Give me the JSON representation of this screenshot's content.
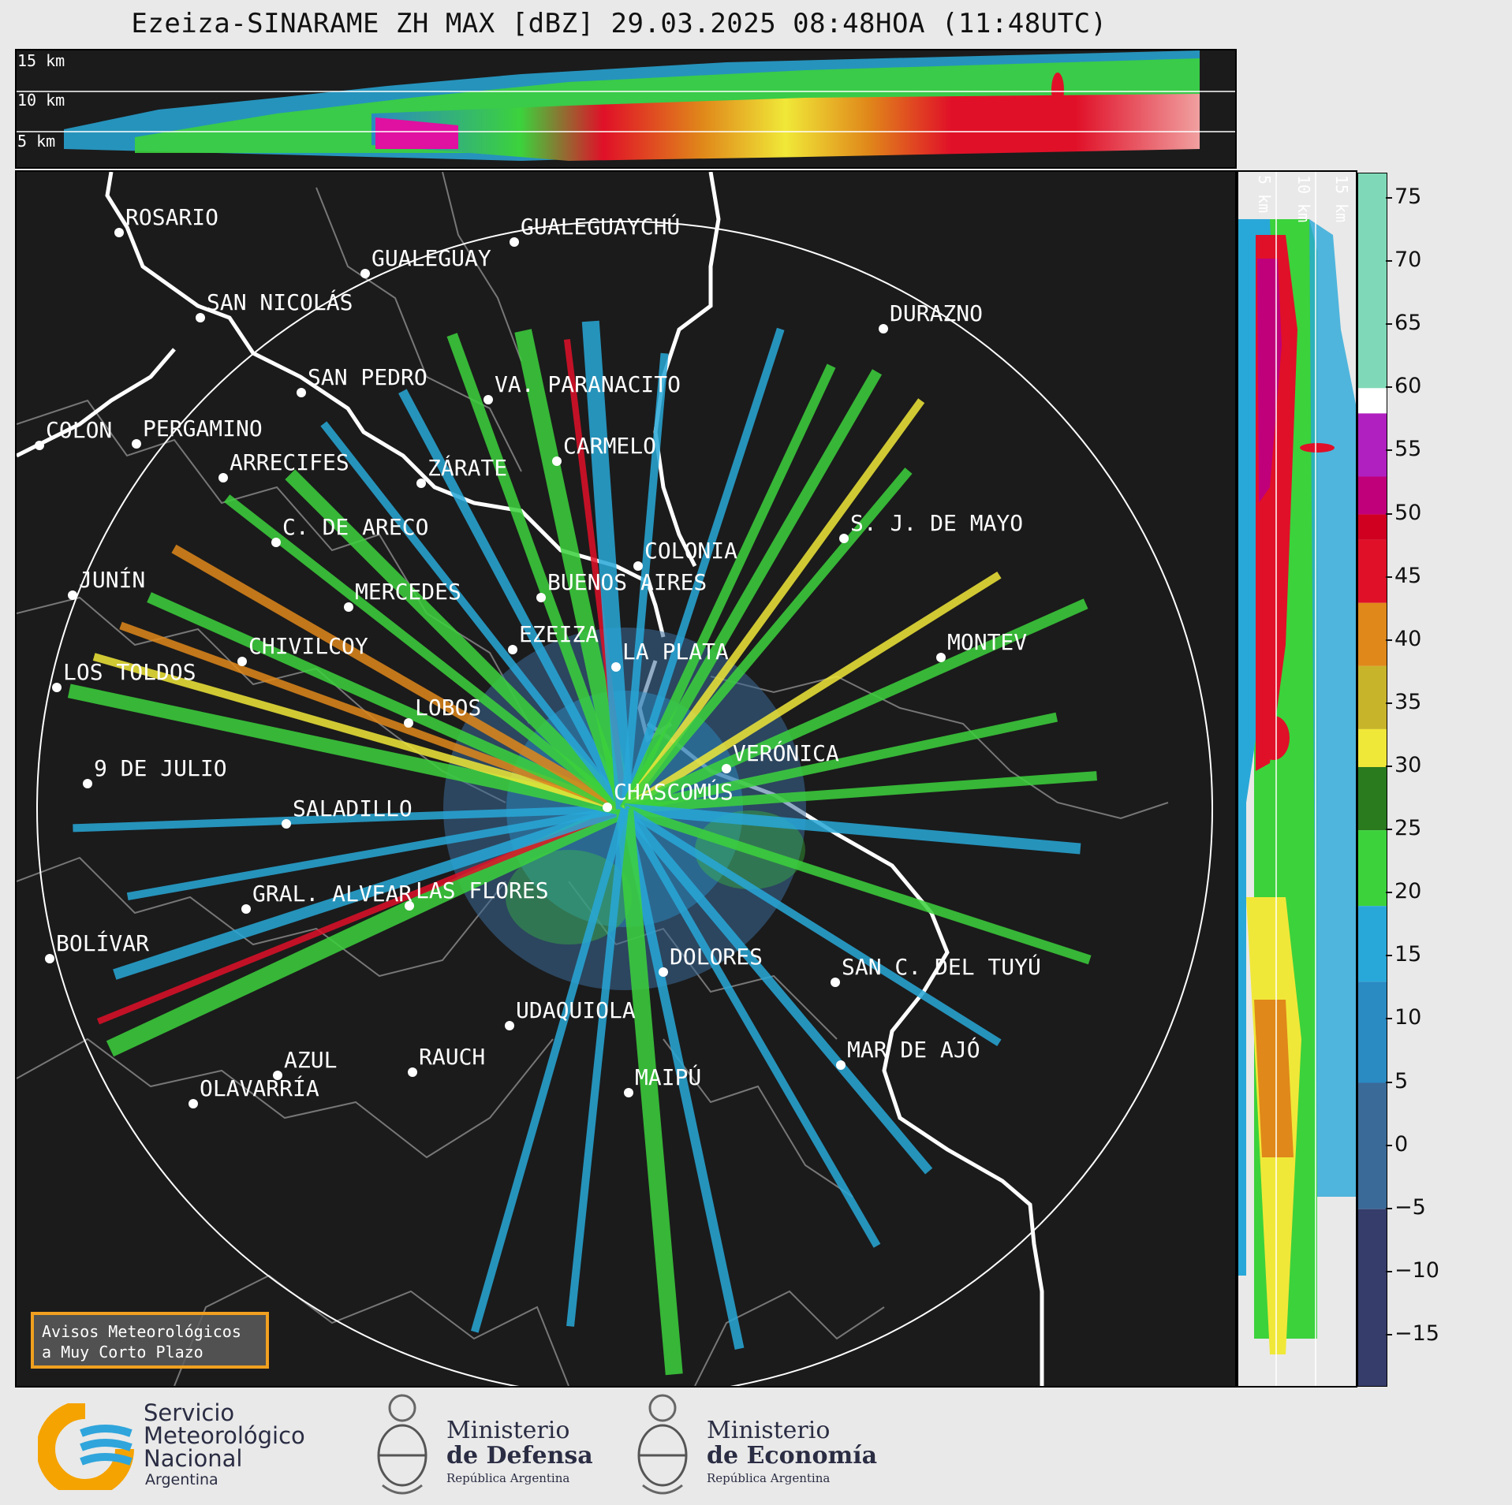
{
  "title": "Ezeiza-SINARAME ZH MAX [dBZ] 29.03.2025 08:48HOA (11:48UTC)",
  "top_panel": {
    "height_labels": [
      "15 km",
      "10 km",
      "5 km"
    ]
  },
  "side_panel": {
    "height_labels": [
      "5 km",
      "10 km",
      "15 km"
    ]
  },
  "colorbar": {
    "unit": "dBZ",
    "ticks": [
      "75",
      "70",
      "65",
      "60",
      "55",
      "50",
      "45",
      "40",
      "35",
      "30",
      "25",
      "20",
      "15",
      "10",
      "5",
      "0",
      "−5",
      "−10",
      "−15"
    ],
    "scale": [
      {
        "from": 60,
        "to": 77,
        "color": "#7fd9b8"
      },
      {
        "from": 58,
        "to": 60,
        "color": "#ffffff"
      },
      {
        "from": 53,
        "to": 58,
        "color": "#b020c0"
      },
      {
        "from": 50,
        "to": 53,
        "color": "#c0007a"
      },
      {
        "from": 48,
        "to": 50,
        "color": "#d00020"
      },
      {
        "from": 43,
        "to": 48,
        "color": "#e01028"
      },
      {
        "from": 38,
        "to": 43,
        "color": "#e0881a"
      },
      {
        "from": 33,
        "to": 38,
        "color": "#c8b42a"
      },
      {
        "from": 30,
        "to": 33,
        "color": "#f0e838"
      },
      {
        "from": 25,
        "to": 30,
        "color": "#2a7a1e"
      },
      {
        "from": 19,
        "to": 25,
        "color": "#3cd23c"
      },
      {
        "from": 13,
        "to": 19,
        "color": "#28a8d8"
      },
      {
        "from": 5,
        "to": 13,
        "color": "#2a8ac2"
      },
      {
        "from": -5,
        "to": 5,
        "color": "#3a6a98"
      },
      {
        "from": -19,
        "to": -5,
        "color": "#363d6a"
      }
    ]
  },
  "cities": [
    {
      "name": "ROSARIO"
    },
    {
      "name": "GUALEGUAYCHÚ"
    },
    {
      "name": "GUALEGUAY"
    },
    {
      "name": "SAN NICOLÁS"
    },
    {
      "name": "DURAZNO"
    },
    {
      "name": "SAN PEDRO"
    },
    {
      "name": "VA. PARANACITO"
    },
    {
      "name": "COLON"
    },
    {
      "name": "PERGAMINO"
    },
    {
      "name": "CARMELO"
    },
    {
      "name": "ARRECIFES"
    },
    {
      "name": "ZÁRATE"
    },
    {
      "name": "S. J. DE MAYO"
    },
    {
      "name": "C. DE ARECO"
    },
    {
      "name": "COLONIA"
    },
    {
      "name": "JUNÍN"
    },
    {
      "name": "BUENOS AIRES"
    },
    {
      "name": "MERCEDES"
    },
    {
      "name": "EZEIZA"
    },
    {
      "name": "MONTEV"
    },
    {
      "name": "CHIVILCOY"
    },
    {
      "name": "LA PLATA"
    },
    {
      "name": "LOS TOLDOS"
    },
    {
      "name": "LOBOS"
    },
    {
      "name": "VERÓNICA"
    },
    {
      "name": "9 DE JULIO"
    },
    {
      "name": "CHASCOMÚS"
    },
    {
      "name": "SALADILLO"
    },
    {
      "name": "GRAL. ALVEAR"
    },
    {
      "name": "LAS FLORES"
    },
    {
      "name": "BOLÍVAR"
    },
    {
      "name": "DOLORES"
    },
    {
      "name": "SAN C. DEL TUYÚ"
    },
    {
      "name": "UDAQUIOLA"
    },
    {
      "name": "MAR DE AJÓ"
    },
    {
      "name": "AZUL"
    },
    {
      "name": "RAUCH"
    },
    {
      "name": "OLAVARRÍA"
    },
    {
      "name": "MAIPÚ"
    }
  ],
  "nowcast_box": {
    "line1": "Avisos Meteorológicos",
    "line2": "a Muy Corto Plazo"
  },
  "logos": {
    "smn": {
      "l1": "Servicio",
      "l2": "Meteorológico",
      "l3": "Nacional",
      "l4": "Argentina"
    },
    "defensa": {
      "l1": "Ministerio",
      "l2": "de Defensa",
      "l3": "República Argentina"
    },
    "economia": {
      "l1": "Ministerio",
      "l2": "de Economía",
      "l3": "República Argentina"
    }
  }
}
